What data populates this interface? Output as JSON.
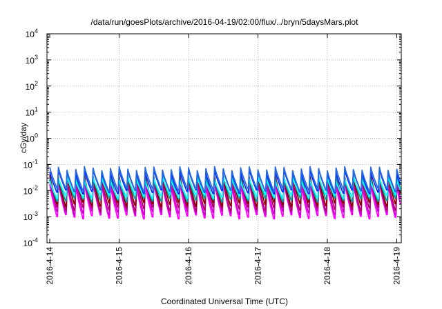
{
  "chart_data": {
    "type": "line",
    "title": "/data/run/goesPlots/archive/2016-04-19/02:00/flux/../bryn/5daysMars.plot",
    "xlabel": "Coordinated Universal Time (UTC)",
    "ylabel": "cGy/day",
    "y_scale": "log",
    "ylim": [
      0.0001,
      10000
    ],
    "xlim": [
      "2016-04-14",
      "2016-04-19 02:00"
    ],
    "grid": true,
    "legend": "none",
    "x_ticks": [
      "2016-4-14",
      "2016-4-15",
      "2016-4-16",
      "2016-4-17",
      "2016-4-18",
      "2016-4-19"
    ],
    "y_ticks": [
      {
        "base": "10",
        "exp": "-4",
        "value": 0.0001
      },
      {
        "base": "10",
        "exp": "-3",
        "value": 0.001
      },
      {
        "base": "10",
        "exp": "-2",
        "value": 0.01
      },
      {
        "base": "10",
        "exp": "-1",
        "value": 0.1
      },
      {
        "base": "10",
        "exp": "0",
        "value": 1
      },
      {
        "base": "10",
        "exp": "1",
        "value": 10
      },
      {
        "base": "10",
        "exp": "2",
        "value": 100
      },
      {
        "base": "10",
        "exp": "3",
        "value": 1000
      },
      {
        "base": "10",
        "exp": "4",
        "value": 10000
      }
    ],
    "pattern": {
      "description_period_hours": 3,
      "periods": 41
    },
    "series": [
      {
        "color": "#ff00ff",
        "peak": 0.018,
        "trough": 0.001
      },
      {
        "color": "#cc00cc",
        "peak": 0.022,
        "trough": 0.0014
      },
      {
        "color": "#b0006a",
        "peak": 0.03,
        "trough": 0.002
      },
      {
        "color": "#8b0000",
        "peak": 0.04,
        "trough": 0.003
      },
      {
        "color": "#00a0a0",
        "peak": 0.034,
        "trough": 0.0045
      },
      {
        "color": "#00ffff",
        "peak": 0.028,
        "trough": 0.006
      },
      {
        "color": "#0033ff",
        "peak": 0.055,
        "trough": 0.009
      },
      {
        "color": "#2a6adf",
        "peak": 0.07,
        "trough": 0.011
      }
    ]
  }
}
